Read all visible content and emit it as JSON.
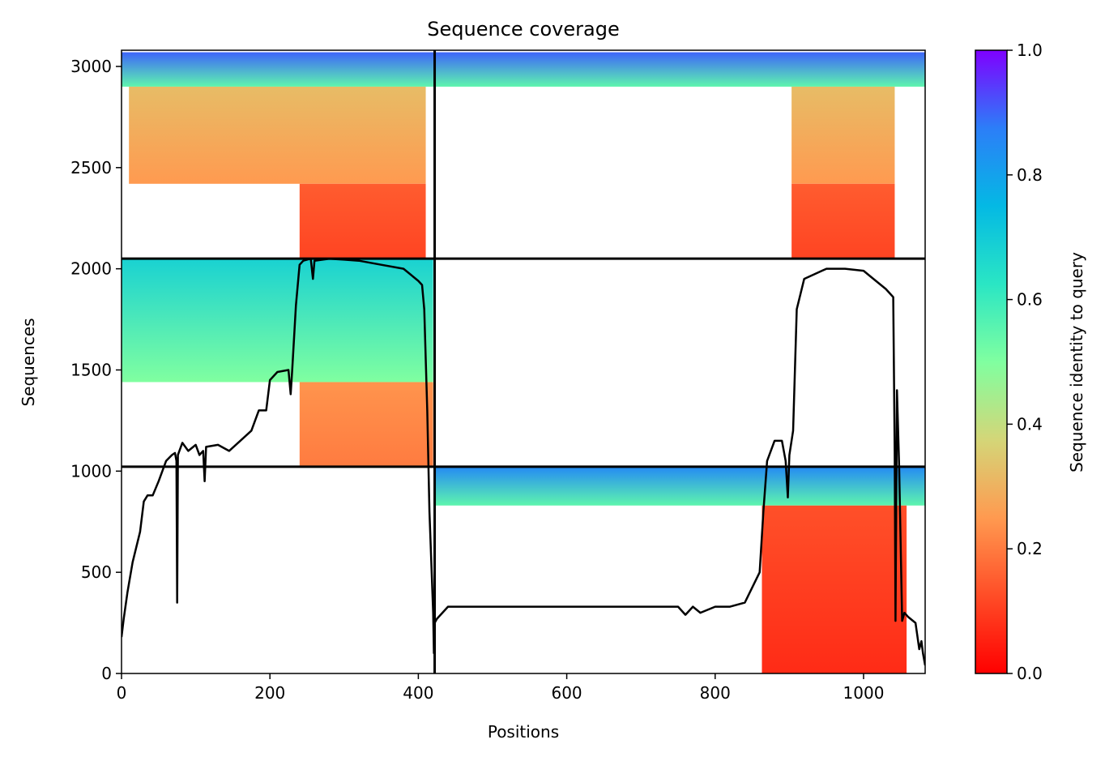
{
  "chart_data": {
    "type": "heatmap",
    "title": "Sequence coverage",
    "xlabel": "Positions",
    "ylabel": "Sequences",
    "xlim": [
      0,
      1083
    ],
    "ylim": [
      0,
      3080
    ],
    "xticks": [
      0,
      200,
      400,
      600,
      800,
      1000
    ],
    "yticks": [
      0,
      500,
      1000,
      1500,
      2000,
      2500,
      3000
    ],
    "colormap": "rainbow_r",
    "colorbar": {
      "label": "Sequence identity to query",
      "range": [
        0.0,
        1.0
      ],
      "ticks": [
        "0.0",
        "0.2",
        "0.4",
        "0.6",
        "0.8",
        "1.0"
      ]
    },
    "chain_boundaries": {
      "x": [
        422
      ],
      "y": [
        1022,
        2050
      ]
    },
    "coverage_blocks": [
      {
        "x": [
          0,
          422
        ],
        "y": [
          2900,
          3070
        ],
        "identity_top": 0.9,
        "identity_bottom": 0.55
      },
      {
        "x": [
          10,
          410
        ],
        "y": [
          2420,
          2900
        ],
        "identity_top": 0.32,
        "identity_bottom": 0.25
      },
      {
        "x": [
          240,
          410
        ],
        "y": [
          2050,
          2420
        ],
        "identity_top": 0.15,
        "identity_bottom": 0.11
      },
      {
        "x": [
          422,
          1083
        ],
        "y": [
          2900,
          3070
        ],
        "identity_top": 0.9,
        "identity_bottom": 0.55
      },
      {
        "x": [
          903,
          1042
        ],
        "y": [
          2420,
          2900
        ],
        "identity_top": 0.32,
        "identity_bottom": 0.25
      },
      {
        "x": [
          903,
          1042
        ],
        "y": [
          2050,
          2420
        ],
        "identity_top": 0.15,
        "identity_bottom": 0.11
      },
      {
        "x": [
          0,
          420
        ],
        "y": [
          1440,
          2050
        ],
        "identity_top": 0.68,
        "identity_bottom": 0.5
      },
      {
        "x": [
          240,
          420
        ],
        "y": [
          1022,
          1440
        ],
        "identity_top": 0.24,
        "identity_bottom": 0.2
      },
      {
        "x": [
          422,
          1083
        ],
        "y": [
          830,
          1022
        ],
        "identity_top": 0.85,
        "identity_bottom": 0.55
      },
      {
        "x": [
          863,
          1058
        ],
        "y": [
          0,
          830
        ],
        "identity_top": 0.13,
        "identity_bottom": 0.07
      }
    ],
    "coverage_line": {
      "x": [
        0,
        3,
        8,
        15,
        25,
        30,
        35,
        42,
        50,
        60,
        68,
        72,
        74,
        75,
        76,
        78,
        82,
        90,
        100,
        105,
        110,
        112,
        114,
        130,
        145,
        160,
        175,
        185,
        195,
        200,
        210,
        225,
        228,
        230,
        235,
        240,
        245,
        255,
        258,
        260,
        280,
        300,
        320,
        350,
        380,
        400,
        405,
        408,
        412,
        415,
        420,
        421,
        422,
        425,
        440,
        460,
        500,
        550,
        600,
        650,
        700,
        750,
        760,
        770,
        780,
        800,
        820,
        840,
        860,
        865,
        870,
        880,
        890,
        895,
        898,
        900,
        905,
        910,
        920,
        950,
        975,
        1000,
        1010,
        1030,
        1040,
        1042,
        1043,
        1045,
        1048,
        1052,
        1055,
        1060,
        1070,
        1075,
        1078,
        1080,
        1083
      ],
      "y": [
        180,
        270,
        400,
        550,
        700,
        850,
        880,
        880,
        950,
        1050,
        1080,
        1090,
        1050,
        350,
        1080,
        1100,
        1140,
        1100,
        1130,
        1080,
        1100,
        950,
        1120,
        1130,
        1100,
        1150,
        1200,
        1300,
        1300,
        1450,
        1490,
        1500,
        1380,
        1500,
        1820,
        2020,
        2040,
        2050,
        1950,
        2040,
        2050,
        2045,
        2040,
        2020,
        2000,
        1940,
        1920,
        1800,
        1300,
        800,
        300,
        100,
        250,
        270,
        330,
        330,
        330,
        330,
        330,
        330,
        330,
        330,
        290,
        330,
        300,
        330,
        330,
        350,
        500,
        800,
        1050,
        1150,
        1150,
        1050,
        870,
        1080,
        1200,
        1800,
        1950,
        2000,
        2000,
        1990,
        1960,
        1900,
        1860,
        1100,
        260,
        1400,
        1020,
        260,
        300,
        280,
        250,
        120,
        160,
        100,
        40
      ]
    }
  }
}
